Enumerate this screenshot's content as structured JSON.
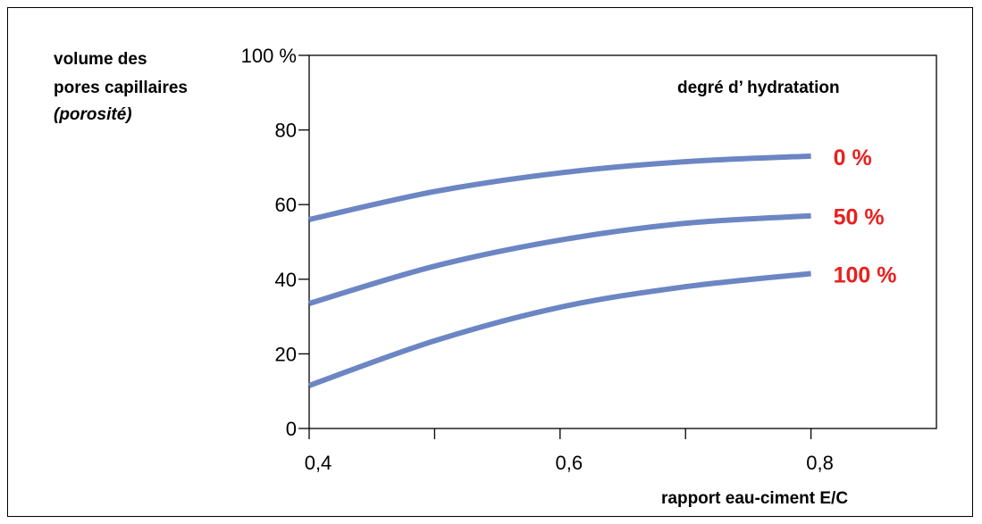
{
  "chart_data": {
    "type": "line",
    "ylabel_lines": [
      "volume des",
      "pores capillaires",
      "(porosité)"
    ],
    "xlabel": "rapport eau-ciment E/C",
    "legend_title": "degré d’ hydratation",
    "xlim": [
      0.4,
      0.9
    ],
    "ylim": [
      0,
      100
    ],
    "x_tick_values": [
      0.4,
      0.5,
      0.6,
      0.7,
      0.8
    ],
    "x_tick_labels": [
      "0,4",
      "",
      "0,6",
      "",
      "0,8"
    ],
    "y_ticks": [
      0,
      20,
      40,
      60,
      80,
      100
    ],
    "y_tick_labels": [
      "0",
      "20",
      "40",
      "60",
      "80",
      "100 %"
    ],
    "grid": false,
    "series": [
      {
        "name": "0 %",
        "x": [
          0.4,
          0.5,
          0.6,
          0.7,
          0.8
        ],
        "y": [
          56,
          63.5,
          68.5,
          71.5,
          73
        ]
      },
      {
        "name": "50 %",
        "x": [
          0.4,
          0.5,
          0.6,
          0.7,
          0.8
        ],
        "y": [
          33.5,
          43.5,
          50.5,
          55,
          57
        ]
      },
      {
        "name": "100 %",
        "x": [
          0.4,
          0.5,
          0.6,
          0.7,
          0.8
        ],
        "y": [
          11.5,
          23.5,
          32.5,
          38,
          41.5
        ]
      }
    ],
    "line_color": "#6c86c4",
    "label_color": "#e8201e"
  }
}
